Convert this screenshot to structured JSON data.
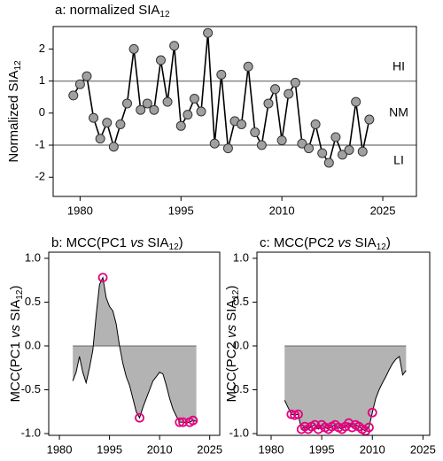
{
  "chart_data": [
    {
      "type": "line",
      "title": [
        "a: normalized SIA",
        "12"
      ],
      "ylabel": [
        "Normalized SIA",
        "12"
      ],
      "x": [
        1979,
        1980,
        1981,
        1982,
        1983,
        1984,
        1985,
        1986,
        1987,
        1988,
        1989,
        1990,
        1991,
        1992,
        1993,
        1994,
        1995,
        1996,
        1997,
        1998,
        1999,
        2000,
        2001,
        2002,
        2003,
        2004,
        2005,
        2006,
        2007,
        2008,
        2009,
        2010,
        2011,
        2012,
        2013,
        2014,
        2015,
        2016,
        2017,
        2018,
        2019,
        2020,
        2021,
        2022,
        2023
      ],
      "series": [
        {
          "color": "#a0a0a0",
          "values": [
            0.55,
            0.9,
            1.15,
            -0.15,
            -0.8,
            -0.3,
            -1.05,
            -0.35,
            0.3,
            2.0,
            0.1,
            0.3,
            0.1,
            1.65,
            0.35,
            2.1,
            -0.4,
            -0.05,
            0.45,
            0.05,
            2.5,
            -0.95,
            1.2,
            -1.1,
            -0.25,
            -0.35,
            1.45,
            -0.6,
            -1.0,
            0.3,
            0.75,
            -0.85,
            0.6,
            0.95,
            -0.95,
            -1.1,
            -0.35,
            -1.25,
            -1.55,
            -0.75,
            -1.3,
            -1.15,
            0.35,
            -1.2,
            -0.2
          ]
        }
      ],
      "xlim": [
        1976,
        2030
      ],
      "ylim": [
        -2.6,
        2.7
      ],
      "xticks": [
        1980,
        1995,
        2010,
        2025
      ],
      "yticks": [
        -2,
        -1,
        0,
        1,
        2
      ],
      "hlines": [
        1,
        -1
      ],
      "hline_color": "#888888",
      "annotations": [
        "HI",
        "NM",
        "LI"
      ]
    },
    {
      "type": "area",
      "title": [
        "b: MCC(PC1 ",
        "vs",
        " SIA",
        "12",
        ")"
      ],
      "ylabel": [
        "MCC(PC1 ",
        "vs",
        " SIA",
        "12",
        ")"
      ],
      "x": [
        1984,
        1985,
        1986,
        1987,
        1988,
        1989,
        1990,
        1991,
        1992,
        1993,
        1994,
        1995,
        1996,
        1997,
        1998,
        1999,
        2000,
        2001,
        2002,
        2003,
        2004,
        2005,
        2006,
        2007,
        2008,
        2009,
        2010,
        2011,
        2012,
        2013,
        2014,
        2015,
        2016,
        2017,
        2018,
        2019,
        2020,
        2021
      ],
      "series": [
        {
          "color": "#b3b3b3",
          "highlight_color": "#e4007f",
          "values": [
            -0.4,
            -0.3,
            -0.12,
            -0.3,
            -0.42,
            -0.25,
            -0.05,
            0.35,
            0.7,
            0.78,
            0.55,
            0.45,
            0.4,
            0.25,
            0.0,
            -0.2,
            -0.35,
            -0.45,
            -0.6,
            -0.75,
            -0.82,
            -0.7,
            -0.6,
            -0.5,
            -0.4,
            -0.35,
            -0.3,
            -0.32,
            -0.45,
            -0.6,
            -0.72,
            -0.8,
            -0.87,
            -0.87,
            -0.88,
            -0.87,
            -0.85,
            -0.86
          ],
          "circled": [
            false,
            false,
            false,
            false,
            false,
            false,
            false,
            false,
            false,
            true,
            false,
            false,
            false,
            false,
            false,
            false,
            false,
            false,
            false,
            false,
            true,
            false,
            false,
            false,
            false,
            false,
            false,
            false,
            false,
            false,
            false,
            false,
            true,
            true,
            false,
            true,
            true,
            false
          ]
        }
      ],
      "xlim": [
        1976.8,
        2028
      ],
      "ylim": [
        -1.02,
        1.07
      ],
      "xticks": [
        1980,
        1995,
        2010,
        2025
      ],
      "yticks": [
        {
          "value": 1,
          "label": "1.0"
        },
        {
          "value": 0.5,
          "label": "0.5"
        },
        {
          "value": 0,
          "label": "0.0"
        },
        {
          "value": -0.5,
          "label": "-0.5"
        },
        {
          "value": -1,
          "label": "-1.0"
        }
      ]
    },
    {
      "type": "area",
      "title": [
        "c: MCC(PC2 ",
        "vs",
        " SIA",
        "12",
        ")"
      ],
      "ylabel": [
        "MCC(PC2 ",
        "vs",
        " SIA",
        "12",
        ")"
      ],
      "x": [
        1984,
        1985,
        1986,
        1987,
        1988,
        1989,
        1990,
        1991,
        1992,
        1993,
        1994,
        1995,
        1996,
        1997,
        1998,
        1999,
        2000,
        2001,
        2002,
        2003,
        2004,
        2005,
        2006,
        2007,
        2008,
        2009,
        2010,
        2011,
        2012,
        2013,
        2014,
        2015,
        2016,
        2017,
        2018,
        2019,
        2020
      ],
      "series": [
        {
          "color": "#b3b3b3",
          "highlight_color": "#e4007f",
          "values": [
            -0.62,
            -0.7,
            -0.78,
            -0.79,
            -0.78,
            -0.95,
            -0.92,
            -0.95,
            -0.92,
            -0.9,
            -0.95,
            -0.9,
            -0.93,
            -0.95,
            -0.92,
            -0.9,
            -0.93,
            -0.95,
            -0.92,
            -0.88,
            -0.93,
            -0.9,
            -0.92,
            -0.95,
            -0.97,
            -0.93,
            -0.76,
            -0.6,
            -0.5,
            -0.42,
            -0.35,
            -0.27,
            -0.2,
            -0.15,
            -0.12,
            -0.33,
            -0.28
          ],
          "circled": [
            false,
            false,
            true,
            true,
            true,
            true,
            true,
            true,
            true,
            true,
            true,
            true,
            true,
            true,
            true,
            true,
            true,
            true,
            true,
            true,
            true,
            true,
            true,
            true,
            true,
            true,
            true,
            false,
            false,
            false,
            false,
            false,
            false,
            false,
            false,
            false,
            false
          ]
        }
      ],
      "xlim": [
        1975.8,
        2027
      ],
      "ylim": [
        -1.02,
        1.07
      ],
      "xticks": [
        1980,
        1995,
        2010,
        2025
      ],
      "yticks": [
        {
          "value": 1,
          "label": "1.0"
        },
        {
          "value": 0.5,
          "label": "0.5"
        },
        {
          "value": 0,
          "label": "0.0"
        },
        {
          "value": -0.5,
          "label": "-0.5"
        },
        {
          "value": -1,
          "label": "-1.0"
        }
      ]
    }
  ]
}
